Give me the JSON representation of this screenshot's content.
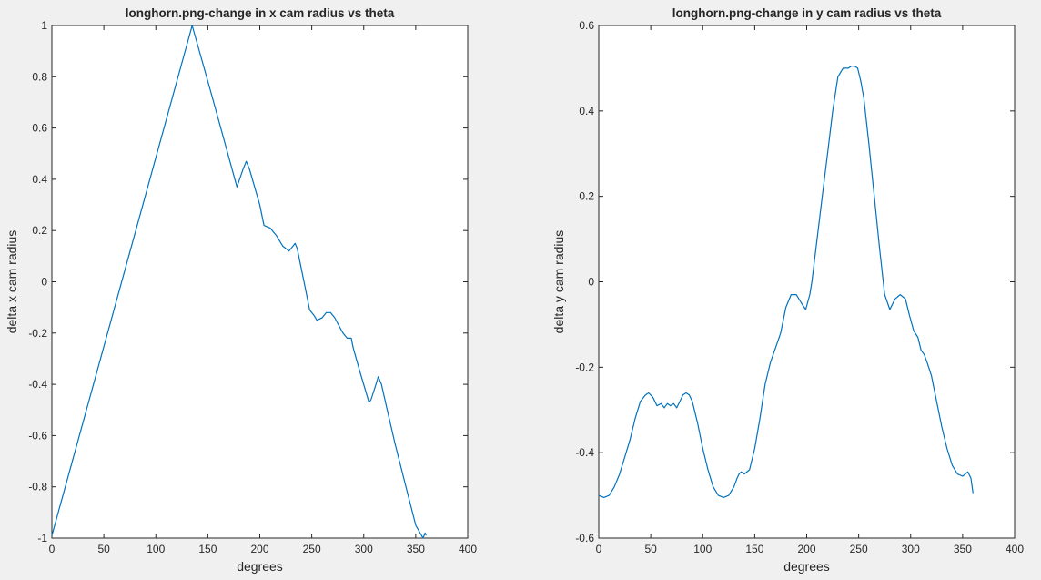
{
  "colors": {
    "figure_background": "#f0f0f0",
    "axes_background": "#ffffff",
    "axes_edge": "#262626",
    "series_line": "#0072bd"
  },
  "chart_data": [
    {
      "type": "line",
      "title": "longhorn.png-change in x cam radius vs theta",
      "xlabel": "degrees",
      "ylabel": "delta x cam radius",
      "xlim": [
        0,
        400
      ],
      "ylim": [
        -1,
        1
      ],
      "xticks": [
        0,
        50,
        100,
        150,
        200,
        250,
        300,
        350,
        400
      ],
      "yticks": [
        -1,
        -0.8,
        -0.6,
        -0.4,
        -0.2,
        0,
        0.2,
        0.4,
        0.6,
        0.8,
        1
      ],
      "xtick_labels": [
        "0",
        "50",
        "100",
        "150",
        "200",
        "250",
        "300",
        "350",
        "400"
      ],
      "ytick_labels": [
        "-1",
        "-0.8",
        "-0.6",
        "-0.4",
        "-0.2",
        "0",
        "0.2",
        "0.4",
        "0.6",
        "0.8",
        "1"
      ],
      "grid": false,
      "series": [
        {
          "x": [
            0,
            135,
            155,
            178,
            184,
            187,
            190,
            200,
            204,
            210,
            216,
            222,
            228,
            232,
            234,
            236,
            240,
            244,
            248,
            252,
            255,
            260,
            264,
            268,
            272,
            276,
            280,
            284,
            288,
            290,
            297,
            305,
            307,
            311,
            314,
            317,
            322,
            330,
            340,
            350,
            357,
            359,
            360
          ],
          "y": [
            -0.99,
            1.0,
            0.71,
            0.37,
            0.44,
            0.47,
            0.44,
            0.3,
            0.22,
            0.21,
            0.18,
            0.14,
            0.12,
            0.14,
            0.15,
            0.13,
            0.05,
            -0.03,
            -0.11,
            -0.13,
            -0.15,
            -0.14,
            -0.12,
            -0.12,
            -0.14,
            -0.17,
            -0.2,
            -0.22,
            -0.22,
            -0.26,
            -0.36,
            -0.47,
            -0.46,
            -0.41,
            -0.37,
            -0.4,
            -0.49,
            -0.63,
            -0.79,
            -0.95,
            -1.0,
            -0.98,
            -0.99
          ]
        }
      ]
    },
    {
      "type": "line",
      "title": "longhorn.png-change in y cam radius vs theta",
      "xlabel": "degrees",
      "ylabel": "delta y cam radius",
      "xlim": [
        0,
        400
      ],
      "ylim": [
        -0.6,
        0.6
      ],
      "xticks": [
        0,
        50,
        100,
        150,
        200,
        250,
        300,
        350,
        400
      ],
      "yticks": [
        -0.6,
        -0.4,
        -0.2,
        0,
        0.2,
        0.4,
        0.6
      ],
      "xtick_labels": [
        "0",
        "50",
        "100",
        "150",
        "200",
        "250",
        "300",
        "350",
        "400"
      ],
      "ytick_labels": [
        "-0.6",
        "-0.4",
        "-0.2",
        "0",
        "0.2",
        "0.4",
        "0.6"
      ],
      "grid": false,
      "series": [
        {
          "x": [
            0,
            5,
            10,
            15,
            20,
            25,
            30,
            35,
            40,
            45,
            48,
            52,
            56,
            60,
            63,
            66,
            69,
            72,
            75,
            78,
            81,
            84,
            87,
            90,
            95,
            100,
            105,
            110,
            115,
            120,
            125,
            130,
            133,
            135,
            137,
            140,
            145,
            150,
            155,
            160,
            165,
            170,
            175,
            180,
            185,
            190,
            195,
            199,
            203,
            205,
            210,
            215,
            220,
            225,
            230,
            235,
            240,
            243,
            246,
            249,
            252,
            255,
            260,
            265,
            270,
            275,
            280,
            285,
            290,
            295,
            299,
            303,
            307,
            310,
            313,
            316,
            320,
            325,
            330,
            335,
            340,
            345,
            350,
            355,
            358,
            360
          ],
          "y": [
            -0.5,
            -0.505,
            -0.5,
            -0.48,
            -0.45,
            -0.41,
            -0.37,
            -0.32,
            -0.28,
            -0.265,
            -0.26,
            -0.27,
            -0.29,
            -0.285,
            -0.295,
            -0.285,
            -0.29,
            -0.285,
            -0.295,
            -0.28,
            -0.265,
            -0.26,
            -0.265,
            -0.28,
            -0.33,
            -0.39,
            -0.44,
            -0.48,
            -0.5,
            -0.505,
            -0.5,
            -0.48,
            -0.46,
            -0.45,
            -0.445,
            -0.45,
            -0.44,
            -0.39,
            -0.32,
            -0.24,
            -0.19,
            -0.155,
            -0.12,
            -0.06,
            -0.03,
            -0.03,
            -0.05,
            -0.065,
            -0.03,
            0.0,
            0.1,
            0.2,
            0.3,
            0.4,
            0.48,
            0.5,
            0.5,
            0.505,
            0.505,
            0.5,
            0.47,
            0.43,
            0.32,
            0.2,
            0.08,
            -0.03,
            -0.065,
            -0.04,
            -0.03,
            -0.04,
            -0.08,
            -0.115,
            -0.13,
            -0.16,
            -0.17,
            -0.19,
            -0.22,
            -0.28,
            -0.34,
            -0.39,
            -0.43,
            -0.45,
            -0.455,
            -0.445,
            -0.46,
            -0.495
          ]
        }
      ]
    }
  ]
}
